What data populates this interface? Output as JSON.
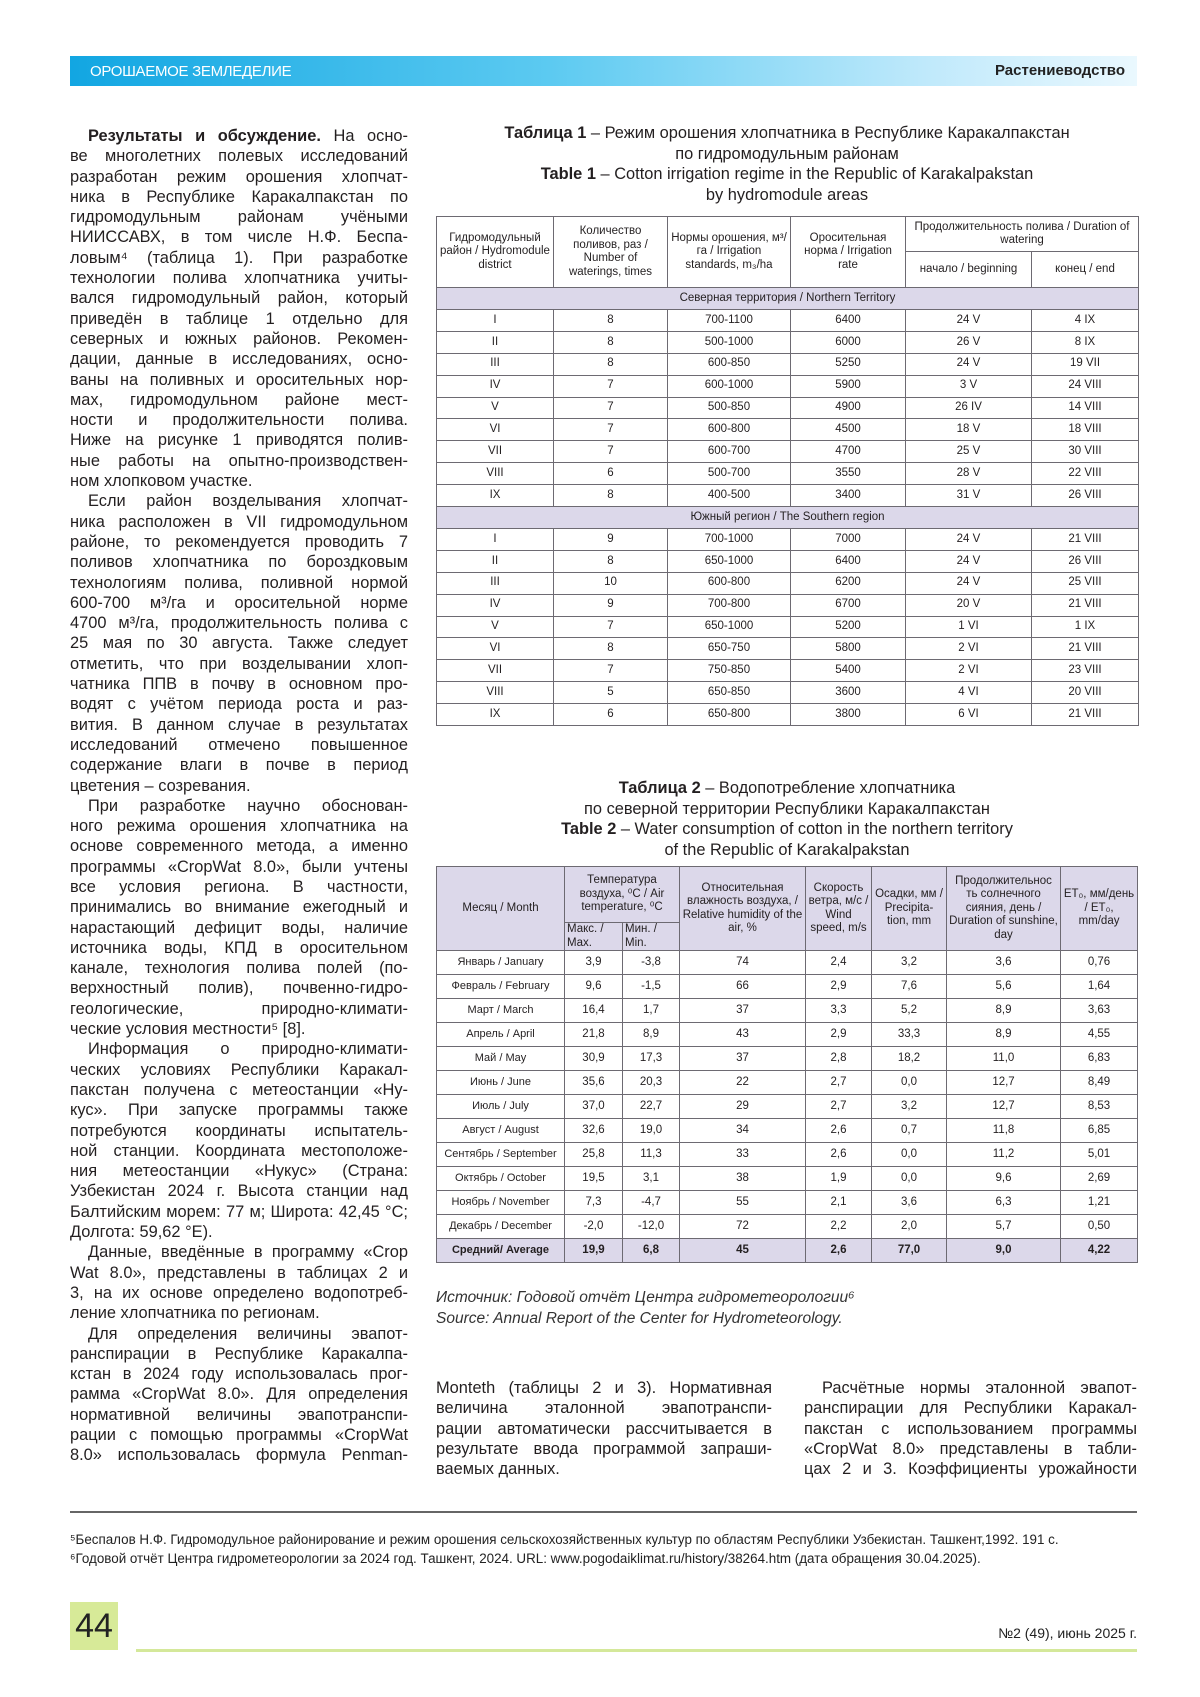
{
  "header": {
    "section": "ОРОШАЕМОЕ ЗЕМЛЕДЕЛИЕ",
    "rubric": "Растениеводство"
  },
  "left_column": [
    {
      "lead": "Результаты и обсуждение.",
      "lines": [
        " На осно-",
        "ве многолетних полевых исследований",
        "разработан режим орошения хлопчат-",
        "ника в Республике Каракалпакстан по",
        "гидромодульным районам учёными",
        "НИИССАВХ, в том числе Н.Ф. Беспа-",
        "ловым⁴ (таблица 1). При разработке",
        "технологии полива хлопчатника учиты-",
        "вался гидромодульный район, который",
        "приведён в таблице 1 отдельно для",
        "северных и южных районов. Рекомен-",
        "дации, данные в исследованиях, осно-",
        "ваны на поливных и оросительных нор-",
        "мах, гидромодульном районе мест-",
        "ности и продолжительности полива.",
        "Ниже на рисунке 1 приводятся полив-",
        "ные работы на опытно-производствен-",
        "ном хлопковом участке."
      ]
    },
    {
      "lines": [
        "Если район возделывания хлопчат-",
        "ника расположен в VII гидромодульном",
        "районе, то рекомендуется проводить 7",
        "поливов хлопчатника по бороздковым",
        "технологиям полива, поливной нормой",
        "600-700 м³/га и оросительной норме",
        "4700 м³/га, продолжительность полива с",
        "25 мая по 30 августа. Также следует",
        "отметить, что при возделывании хлоп-",
        "чатника ППВ в почву в основном про-",
        "водят с учётом периода роста и раз-",
        "вития. В данном случае в результатах",
        "исследований отмечено повышенное",
        "содержание влаги в почве в период",
        "цветения – созревания."
      ]
    },
    {
      "lines": [
        "При разработке научно обоснован-",
        "ного режима орошения хлопчатника на",
        "основе современного метода, а именно",
        "программы «CropWat 8.0», были учтены",
        "все условия региона. В частности,",
        "принимались во внимание ежегодный и",
        "нарастающий дефицит воды, наличие",
        "источника воды, КПД в оросительном",
        "канале, технология полива полей (по-",
        "верхностный полив), почвенно-гидро-",
        "геологические, природно-климати-",
        "ческие условия местности⁵ [8]."
      ]
    },
    {
      "lines": [
        "Информация о природно-климати-",
        "ческих условиях Республики Каракал-",
        "пакстан получена с метеостанции «Ну-",
        "кус». При запуске программы также",
        "потребуются координаты испытатель-",
        "ной станции. Координата местоположе-",
        "ния метеостанции «Нукус» (Страна:",
        "Узбекистан 2024 г. Высота станции над",
        "Балтийским морем: 77 м; Широта: 42,45 °С;",
        "Долгота: 59,62 °Е)."
      ]
    },
    {
      "lines": [
        "Данные, введённые в программу «Crop",
        "Wat 8.0», представлены в таблицах 2 и",
        "3, на их основе определено водопотреб-",
        "ление хлопчатника по регионам."
      ]
    },
    {
      "lines": [
        "Для определения величины эвапот-",
        "ранспирации в Республике Каракалпа-",
        "кстан в 2024 году использовалась прог-",
        "рамма «CropWat 8.0». Для определения",
        "нормативной величины эвапотранспи-",
        "рации с помощью программы «CropWat",
        "8.0» использовалась формула Penman-"
      ],
      "continues": true
    }
  ],
  "bottom_columns": [
    {
      "lines": [
        "Monteth (таблицы 2 и 3). Нормативная",
        "величина эталонной эвапотранспи-",
        "рации автоматически рассчитывается в",
        "результате ввода программой запраши-",
        "ваемых данных."
      ],
      "indent_first": false
    },
    {
      "lines": [
        "Расчётные нормы эталонной эвапот-",
        "ранспирации для Республики Каракал-",
        "пакстан с использованием программы",
        "«CropWat 8.0» представлены в табли-",
        "цах 2 и 3. Коэффициенты урожайности"
      ],
      "indent_first": true,
      "continues": true
    }
  ],
  "table1": {
    "caption": [
      {
        "bold": "Таблица 1",
        "text": " – Режим орошения хлопчатника в Республике Каракалпакстан"
      },
      {
        "bold": "",
        "text": "по гидромодульным районам"
      },
      {
        "bold": "Table 1",
        "text": " – Cotton irrigation regime in the Republic of Karakalpakstan"
      },
      {
        "bold": "",
        "text": "by hydromodule areas"
      }
    ],
    "headers": {
      "district": "Гидромодульный район / Hydromodule district",
      "waterings": "Количество поливов, раз / Number of waterings, times",
      "standards": "Нормы орошения, м³/га / Irrigation standards, m₃/ha",
      "rate": "Оросительная норма / Irrigation rate",
      "duration": "Продолжительность полива / Duration of watering",
      "beginning": "начало / beginning",
      "end": "конец / end"
    },
    "groups": [
      {
        "label": "Северная территория / Northern Territory",
        "rows": [
          [
            "I",
            "8",
            "700-1100",
            "6400",
            "24 V",
            "4 IX"
          ],
          [
            "II",
            "8",
            "500-1000",
            "6000",
            "26 V",
            "8 IX"
          ],
          [
            "III",
            "8",
            "600-850",
            "5250",
            "24 V",
            "19 VII"
          ],
          [
            "IV",
            "7",
            "600-1000",
            "5900",
            "3 V",
            "24 VIII"
          ],
          [
            "V",
            "7",
            "500-850",
            "4900",
            "26 IV",
            "14 VIII"
          ],
          [
            "VI",
            "7",
            "600-800",
            "4500",
            "18 V",
            "18 VIII"
          ],
          [
            "VII",
            "7",
            "600-700",
            "4700",
            "25 V",
            "30 VIII"
          ],
          [
            "VIII",
            "6",
            "500-700",
            "3550",
            "28 V",
            "22 VIII"
          ],
          [
            "IX",
            "8",
            "400-500",
            "3400",
            "31 V",
            "26 VIII"
          ]
        ]
      },
      {
        "label": "Южный регион / The Southern region",
        "rows": [
          [
            "I",
            "9",
            "700-1000",
            "7000",
            "24 V",
            "21 VIII"
          ],
          [
            "II",
            "8",
            "650-1000",
            "6400",
            "24 V",
            "26 VIII"
          ],
          [
            "III",
            "10",
            "600-800",
            "6200",
            "24 V",
            "25 VIII"
          ],
          [
            "IV",
            "9",
            "700-800",
            "6700",
            "20 V",
            "21 VIII"
          ],
          [
            "V",
            "7",
            "650-1000",
            "5200",
            "1 VI",
            "1 IX"
          ],
          [
            "VI",
            "8",
            "650-750",
            "5800",
            "2 VI",
            "21 VIII"
          ],
          [
            "VII",
            "7",
            "750-850",
            "5400",
            "2 VI",
            "23 VIII"
          ],
          [
            "VIII",
            "5",
            "650-850",
            "3600",
            "4 VI",
            "20 VIII"
          ],
          [
            "IX",
            "6",
            "650-800",
            "3800",
            "6 VI",
            "21 VIII"
          ]
        ]
      }
    ]
  },
  "table2": {
    "caption": [
      {
        "bold": "Таблица 2",
        "text": " – Водопотребление хлопчатника"
      },
      {
        "bold": "",
        "text": "по северной территории Республики Каракалпакстан"
      },
      {
        "bold": "Table 2",
        "text": " – Water consumption of cotton in the northern territory"
      },
      {
        "bold": "",
        "text": "of the Republic of Karakalpakstan"
      }
    ],
    "headers": {
      "month": "Месяц / Month",
      "temp": "Температура воздуха, ⁰С / Air temperature, ⁰С",
      "max": "Макс. / Max.",
      "min": "Мин. / Min.",
      "humidity": "Относительная влажность воздуха, / Relative humidity of the air, %",
      "wind": "Скорость ветра, м/с / Wind speed, m/s",
      "precip": "Осадки, мм / Precipita-tion, mm",
      "sunshine": "Продолжительнос ть солнечного сияния, день / Duration of sunshine, day",
      "eto": "ET₀, мм/день / ET₀, mm/day"
    },
    "rows": [
      [
        "Январь / January",
        "3,9",
        "-3,8",
        "74",
        "2,4",
        "3,2",
        "3,6",
        "0,76"
      ],
      [
        "Февраль / February",
        "9,6",
        "-1,5",
        "66",
        "2,9",
        "7,6",
        "5,6",
        "1,64"
      ],
      [
        "Март / March",
        "16,4",
        "1,7",
        "37",
        "3,3",
        "5,2",
        "8,9",
        "3,63"
      ],
      [
        "Апрель / April",
        "21,8",
        "8,9",
        "43",
        "2,9",
        "33,3",
        "8,9",
        "4,55"
      ],
      [
        "Май / May",
        "30,9",
        "17,3",
        "37",
        "2,8",
        "18,2",
        "11,0",
        "6,83"
      ],
      [
        "Июнь / June",
        "35,6",
        "20,3",
        "22",
        "2,7",
        "0,0",
        "12,7",
        "8,49"
      ],
      [
        "Июль / July",
        "37,0",
        "22,7",
        "29",
        "2,7",
        "3,2",
        "12,7",
        "8,53"
      ],
      [
        "Август / August",
        "32,6",
        "19,0",
        "34",
        "2,6",
        "0,7",
        "11,8",
        "6,85"
      ],
      [
        "Сентябрь / September",
        "25,8",
        "11,3",
        "33",
        "2,6",
        "0,0",
        "11,2",
        "5,01"
      ],
      [
        "Октябрь / October",
        "19,5",
        "3,1",
        "38",
        "1,9",
        "0,0",
        "9,6",
        "2,69"
      ],
      [
        "Ноябрь / November",
        "7,3",
        "-4,7",
        "55",
        "2,1",
        "3,6",
        "6,3",
        "1,21"
      ],
      [
        "Декабрь / December",
        "-2,0",
        "-12,0",
        "72",
        "2,2",
        "2,0",
        "5,7",
        "0,50"
      ]
    ],
    "average": [
      "Средний/ Average",
      "19,9",
      "6,8",
      "45",
      "2,6",
      "77,0",
      "9,0",
      "4,22"
    ]
  },
  "source": [
    "Источник: Годовой отчёт Центра гидрометеорологии⁶",
    "Source: Annual Report of the Center for Hydrometeorology."
  ],
  "footnotes": [
    "⁵Беспалов Н.Ф. Гидромодульное районирование и режим орошения сельскохозяйственных культур по областям Республики Узбекистан. Ташкент,1992. 191 с.",
    "⁶Годовой отчёт Центра гидрометеорологии за 2024 год. Ташкент, 2024. URL: www.pogodaiklimat.ru/history/38264.htm (дата обращения 30.04.2025)."
  ],
  "footer": {
    "page_number": "44",
    "issue": "№2 (49), июнь 2025 г."
  },
  "colors": {
    "header_gradient_start": "#12a6e2",
    "table_band": "#dcd8ea",
    "page_tab": "#d7ea98"
  }
}
